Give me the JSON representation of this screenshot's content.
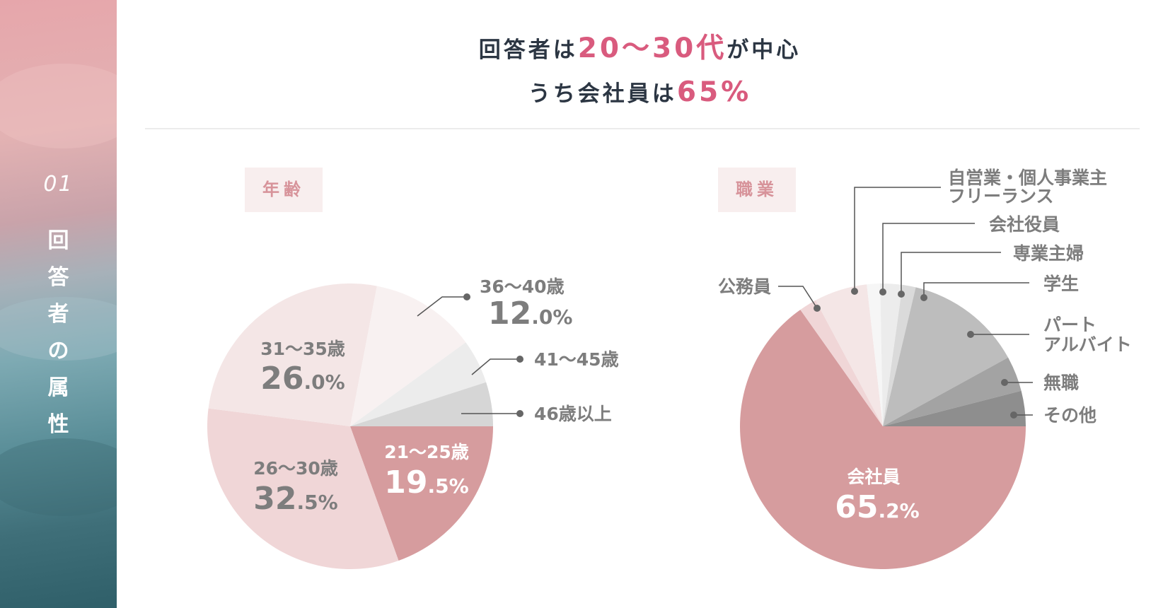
{
  "sidebar": {
    "section_number": "01",
    "title_chars": [
      "回",
      "答",
      "者",
      "の",
      "属",
      "性"
    ]
  },
  "headline": {
    "line1_prefix": "回答者は",
    "line1_accent": "20～30代",
    "line1_suffix": "が中心",
    "line2_prefix": "うち会社員は",
    "line2_accent": "65%"
  },
  "colors": {
    "accent": "#d95b7e",
    "text_dark": "#2c3643",
    "tag_bg": "#f8eeee",
    "tag_text": "#d7939a"
  },
  "chart_data": [
    {
      "type": "pie",
      "tag": "年齢",
      "slices": [
        {
          "label": "21～25歳",
          "value": 19.5,
          "value_int": "19",
          "value_dec": ".5%",
          "color": "#d69c9e"
        },
        {
          "label": "26～30歳",
          "value": 32.5,
          "value_int": "32",
          "value_dec": ".5%",
          "color": "#f0d6d7"
        },
        {
          "label": "31～35歳",
          "value": 26.0,
          "value_int": "26",
          "value_dec": ".0%",
          "color": "#f4e6e6"
        },
        {
          "label": "36～40歳",
          "value": 12.0,
          "value_int": "12",
          "value_dec": ".0%",
          "color": "#f8f1f1"
        },
        {
          "label": "41～45歳",
          "value": 5.0,
          "color": "#ececec"
        },
        {
          "label": "46歳以上",
          "value": 5.0,
          "color": "#d6d6d6"
        }
      ]
    },
    {
      "type": "pie",
      "tag": "職業",
      "slices": [
        {
          "label": "会社員",
          "value": 65.2,
          "value_int": "65",
          "value_dec": ".2%",
          "color": "#d69c9e"
        },
        {
          "label": "公務員",
          "value": 2.0,
          "color": "#f0d6d7"
        },
        {
          "label": "自営業・個人事業主 フリーランス",
          "value": 6.0,
          "color": "#f4e6e6"
        },
        {
          "label": "会社役員",
          "value": 1.5,
          "color": "#f6f6f6"
        },
        {
          "label": "専業主婦",
          "value": 2.5,
          "color": "#ececec"
        },
        {
          "label": "学生",
          "value": 1.5,
          "color": "#dadada"
        },
        {
          "label": "パート アルバイト",
          "value": 13.3,
          "color": "#bdbdbd"
        },
        {
          "label": "無職",
          "value": 4.0,
          "color": "#a3a3a3"
        },
        {
          "label": "その他",
          "value": 4.0,
          "color": "#8e8e8e"
        }
      ]
    }
  ]
}
